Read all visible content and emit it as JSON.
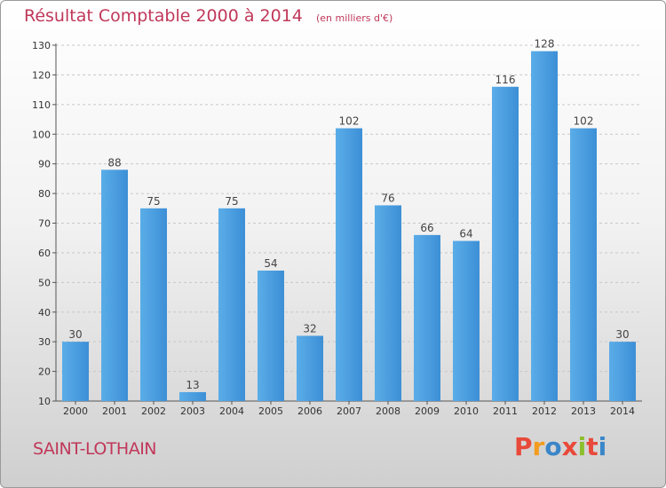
{
  "header": {
    "title": "Résultat Comptable 2000 à 2014",
    "subtitle": "(en milliers d'€)"
  },
  "footer": {
    "town": "SAINT-LOTHAIN",
    "logo_text": "Proxiti",
    "logo_colors": [
      "#e8493a",
      "#f39c1f",
      "#3a86c8",
      "#e8493a",
      "#8bbf2e",
      "#e8493a",
      "#3a86c8"
    ]
  },
  "chart_data": {
    "type": "bar",
    "title": "Résultat Comptable 2000 à 2014",
    "subtitle": "(en milliers d'€)",
    "xlabel": "",
    "ylabel": "",
    "categories": [
      "2000",
      "2001",
      "2002",
      "2003",
      "2004",
      "2005",
      "2006",
      "2007",
      "2008",
      "2009",
      "2010",
      "2011",
      "2012",
      "2013",
      "2014"
    ],
    "values": [
      30,
      88,
      75,
      13,
      75,
      54,
      32,
      102,
      76,
      66,
      64,
      116,
      128,
      102,
      30
    ],
    "ylim": [
      10,
      130
    ],
    "yticks": [
      10,
      20,
      30,
      40,
      50,
      60,
      70,
      80,
      90,
      100,
      110,
      120,
      130
    ],
    "grid": true,
    "bar_color": "#3d8fd6",
    "bar_color_light": "#5aade8"
  }
}
